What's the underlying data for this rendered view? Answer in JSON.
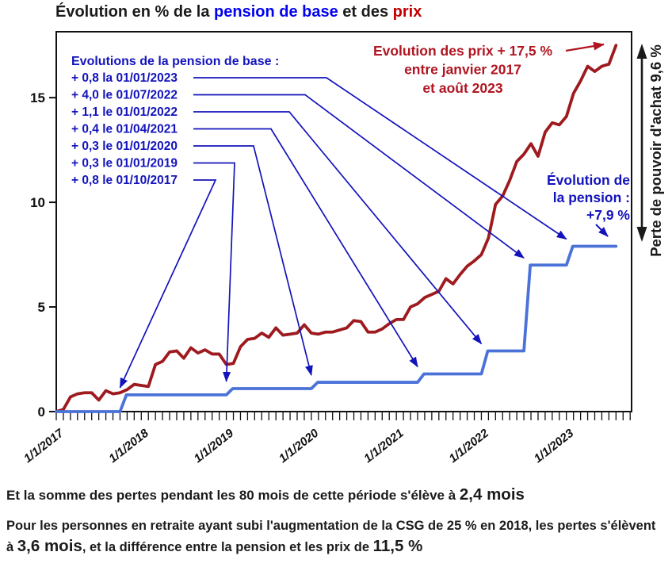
{
  "title": {
    "part1": "Évolution en % de la ",
    "pension": "pension de base",
    "part2": " et des ",
    "prix": "prix"
  },
  "colors": {
    "prices_line": "#9E1A1E",
    "pension_line": "#4A72D8",
    "blue_annotation": "#1313BC",
    "red_annotation": "#B01521",
    "axis": "#111111",
    "title_blue": "#0202EE",
    "title_red": "#C30000"
  },
  "chart_data": {
    "type": "line",
    "title": "Évolution en % de la pension de base et des prix",
    "x_unit": "months from Jan 2017 to Aug 2023",
    "x_tick_labels": [
      "1/1/2017",
      "1/1/2018",
      "1/1/2019",
      "1/1/2020",
      "1/1/2021",
      "1/1/2022",
      "1/1/2023"
    ],
    "x_tick_months": [
      0,
      12,
      24,
      36,
      48,
      60,
      72
    ],
    "y_tick_labels": [
      "0",
      "5",
      "10",
      "15"
    ],
    "y_ticks": [
      0,
      5,
      10,
      15
    ],
    "ylim": [
      0,
      18.15
    ],
    "xlim_months": [
      0,
      81.2
    ],
    "grid": false,
    "legend": "none",
    "series": [
      {
        "name": "prix",
        "kind": "monthly",
        "start_month": 0,
        "values": [
          0.0,
          0.1,
          0.7,
          0.85,
          0.9,
          0.9,
          0.55,
          1.0,
          0.85,
          0.9,
          1.05,
          1.3,
          1.25,
          1.2,
          2.25,
          2.4,
          2.85,
          2.9,
          2.55,
          3.05,
          2.8,
          2.95,
          2.75,
          2.75,
          2.25,
          2.3,
          3.1,
          3.45,
          3.5,
          3.75,
          3.55,
          4.0,
          3.65,
          3.7,
          3.75,
          4.15,
          3.75,
          3.7,
          3.8,
          3.8,
          3.9,
          4.0,
          4.35,
          4.3,
          3.8,
          3.8,
          3.95,
          4.2,
          4.4,
          4.4,
          5.0,
          5.15,
          5.45,
          5.6,
          5.75,
          6.35,
          6.1,
          6.55,
          6.95,
          7.2,
          7.5,
          8.3,
          9.9,
          10.3,
          11.05,
          11.95,
          12.3,
          12.8,
          12.2,
          13.35,
          13.8,
          13.7,
          14.1,
          15.2,
          15.8,
          16.5,
          16.25,
          16.5,
          16.6,
          17.5
        ]
      },
      {
        "name": "pension de base",
        "kind": "steps",
        "end_month": 79,
        "steps": [
          {
            "month": 0,
            "value": 0.0
          },
          {
            "month": 9,
            "value": 0.8
          },
          {
            "month": 24,
            "value": 1.1
          },
          {
            "month": 36,
            "value": 1.4
          },
          {
            "month": 51,
            "value": 1.8
          },
          {
            "month": 60,
            "value": 2.9
          },
          {
            "month": 66,
            "value": 7.0
          },
          {
            "month": 72,
            "value": 7.9
          }
        ]
      }
    ]
  },
  "annotations": {
    "pension_list": {
      "header": "Evolutions de la pension de base :",
      "items": [
        {
          "label": "+ 0,8 la 01/01/2023",
          "target_month": 72,
          "target_value": 7.9
        },
        {
          "label": "+ 4,0 le 01/07/2022",
          "target_month": 66,
          "target_value": 7.0
        },
        {
          "label": "+ 1,1 le 01/01/2022",
          "target_month": 60,
          "target_value": 2.9
        },
        {
          "label": "+ 0,4 le 01/04/2021",
          "target_month": 51,
          "target_value": 1.8
        },
        {
          "label": "+ 0,3 le 01/01/2020",
          "target_month": 36,
          "target_value": 1.4
        },
        {
          "label": "+ 0,3 le 01/01/2019",
          "target_month": 24,
          "target_value": 1.1
        },
        {
          "label": "+ 0,8 le 01/10/2017",
          "target_month": 9,
          "target_value": 0.8
        }
      ]
    },
    "prices_note": {
      "lines": [
        "Evolution des prix + 17,5 %",
        "entre janvier 2017",
        "et août 2023"
      ]
    },
    "pension_note": {
      "lines": [
        "Évolution de",
        "la pension :",
        "+7,9 %"
      ]
    },
    "loss_label": {
      "text": "Perte de pouvoir d'achat 9,6 %"
    }
  },
  "footer": {
    "para1": {
      "text1": "Et la somme des pertes pendant les 80 mois de cette période s'élève à ",
      "big1": "2,4 mois"
    },
    "para2": {
      "text1": "Pour les personnes en retraite ayant subi l'augmentation de la CSG de 25 % en 2018, les pertes s'élèvent à ",
      "big1": "3,6 mois",
      "text2": ", et la différence entre la pension et les prix de ",
      "big2": "11,5 %"
    }
  }
}
